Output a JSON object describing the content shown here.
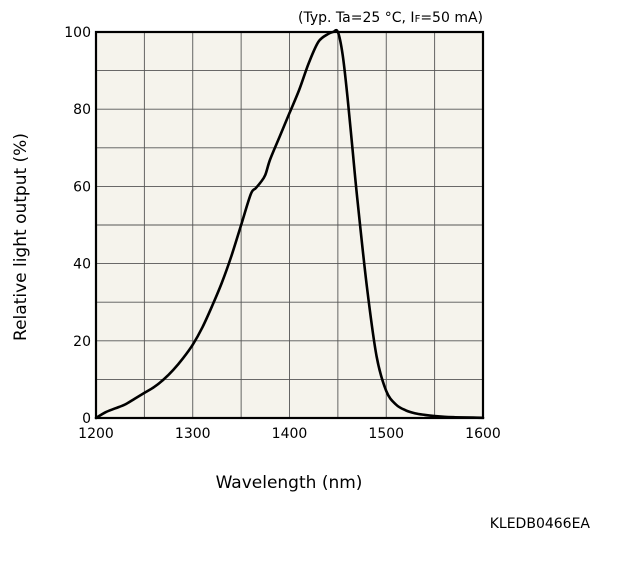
{
  "chart_data": {
    "type": "line",
    "title": "",
    "xlabel": "Wavelength (nm)",
    "ylabel": "Relative light output (%)",
    "condition_note": "(Typ. Ta=25 °C, IF=50 mA)",
    "condition_note_parts": {
      "prefix": "(Typ. Ta=25 °C, I",
      "subscript": "F",
      "suffix": "=50 mA)"
    },
    "xlim": [
      1200,
      1600
    ],
    "ylim": [
      0,
      100
    ],
    "x_ticks": [
      1200,
      1300,
      1400,
      1500,
      1600
    ],
    "x_tick_labels": [
      "1200",
      "1300",
      "1400",
      "1500",
      "1600"
    ],
    "y_ticks": [
      0,
      20,
      40,
      60,
      80,
      100
    ],
    "y_tick_labels": [
      "0",
      "20",
      "40",
      "60",
      "80",
      "100"
    ],
    "x_grid_step": 50,
    "y_grid_step": 10,
    "grid": true,
    "plot_background": "#f5f3ec",
    "line_color": "#000000",
    "series": [
      {
        "x": [
          1200,
          1210,
          1220,
          1230,
          1240,
          1250,
          1260,
          1270,
          1280,
          1290,
          1300,
          1310,
          1320,
          1330,
          1340,
          1350,
          1360,
          1365,
          1370,
          1375,
          1380,
          1390,
          1400,
          1410,
          1420,
          1430,
          1440,
          1445,
          1450,
          1455,
          1460,
          1465,
          1470,
          1480,
          1490,
          1500,
          1510,
          1520,
          1530,
          1540,
          1550,
          1560,
          1570,
          1580,
          1590,
          1600
        ],
        "y": [
          0,
          1.5,
          2.5,
          3.5,
          5,
          6.5,
          8,
          10,
          12.5,
          15.5,
          19,
          23.5,
          29,
          35,
          42,
          50,
          58,
          59.5,
          61,
          63,
          67,
          73,
          79,
          85,
          92,
          97.5,
          99.5,
          100,
          100,
          94,
          83,
          70,
          57,
          34,
          16,
          7,
          3.5,
          2,
          1.2,
          0.8,
          0.5,
          0.3,
          0.2,
          0.15,
          0.1,
          0.05
        ]
      }
    ]
  },
  "footer": {
    "code": "KLEDB0466EA"
  }
}
